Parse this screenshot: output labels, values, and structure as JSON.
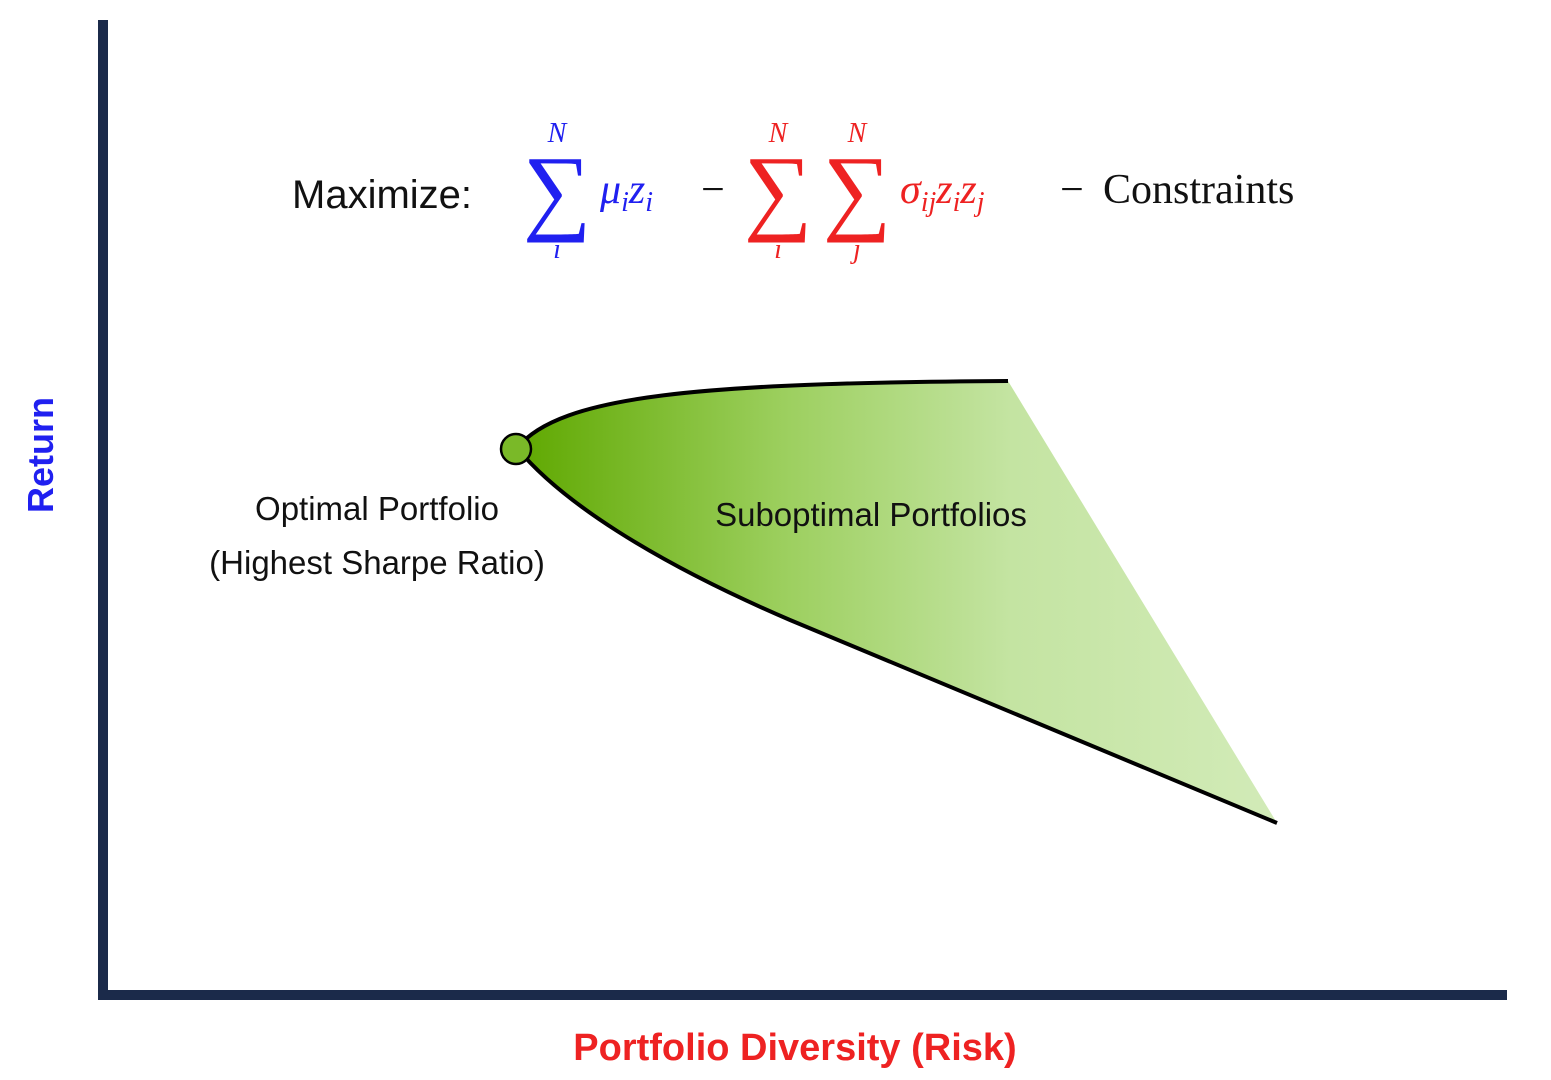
{
  "axes": {
    "y_label": "Return",
    "x_label": "Portfolio Diversity (Risk)"
  },
  "formula": {
    "label": "Maximize:",
    "sum1": {
      "upper": "N",
      "symbol": "∑",
      "lower": "i"
    },
    "term1": [
      {
        "base": "μ",
        "sub": "i"
      },
      {
        "base": "z",
        "sub": "i"
      }
    ],
    "minus1": "−",
    "sum2": {
      "upper": "N",
      "symbol": "∑",
      "lower": "i"
    },
    "sum3": {
      "upper": "N",
      "symbol": "∑",
      "lower": "j"
    },
    "term2": [
      {
        "base": "σ",
        "sub": "ij"
      },
      {
        "base": "z",
        "sub": "i"
      },
      {
        "base": "z",
        "sub": "j"
      }
    ],
    "minus2": "−",
    "constraints": "Constraints"
  },
  "annotations": {
    "optimal": [
      "Optimal Portfolio",
      "(Highest Sharpe Ratio)"
    ],
    "suboptimal": "Suboptimal Portfolios"
  }
}
